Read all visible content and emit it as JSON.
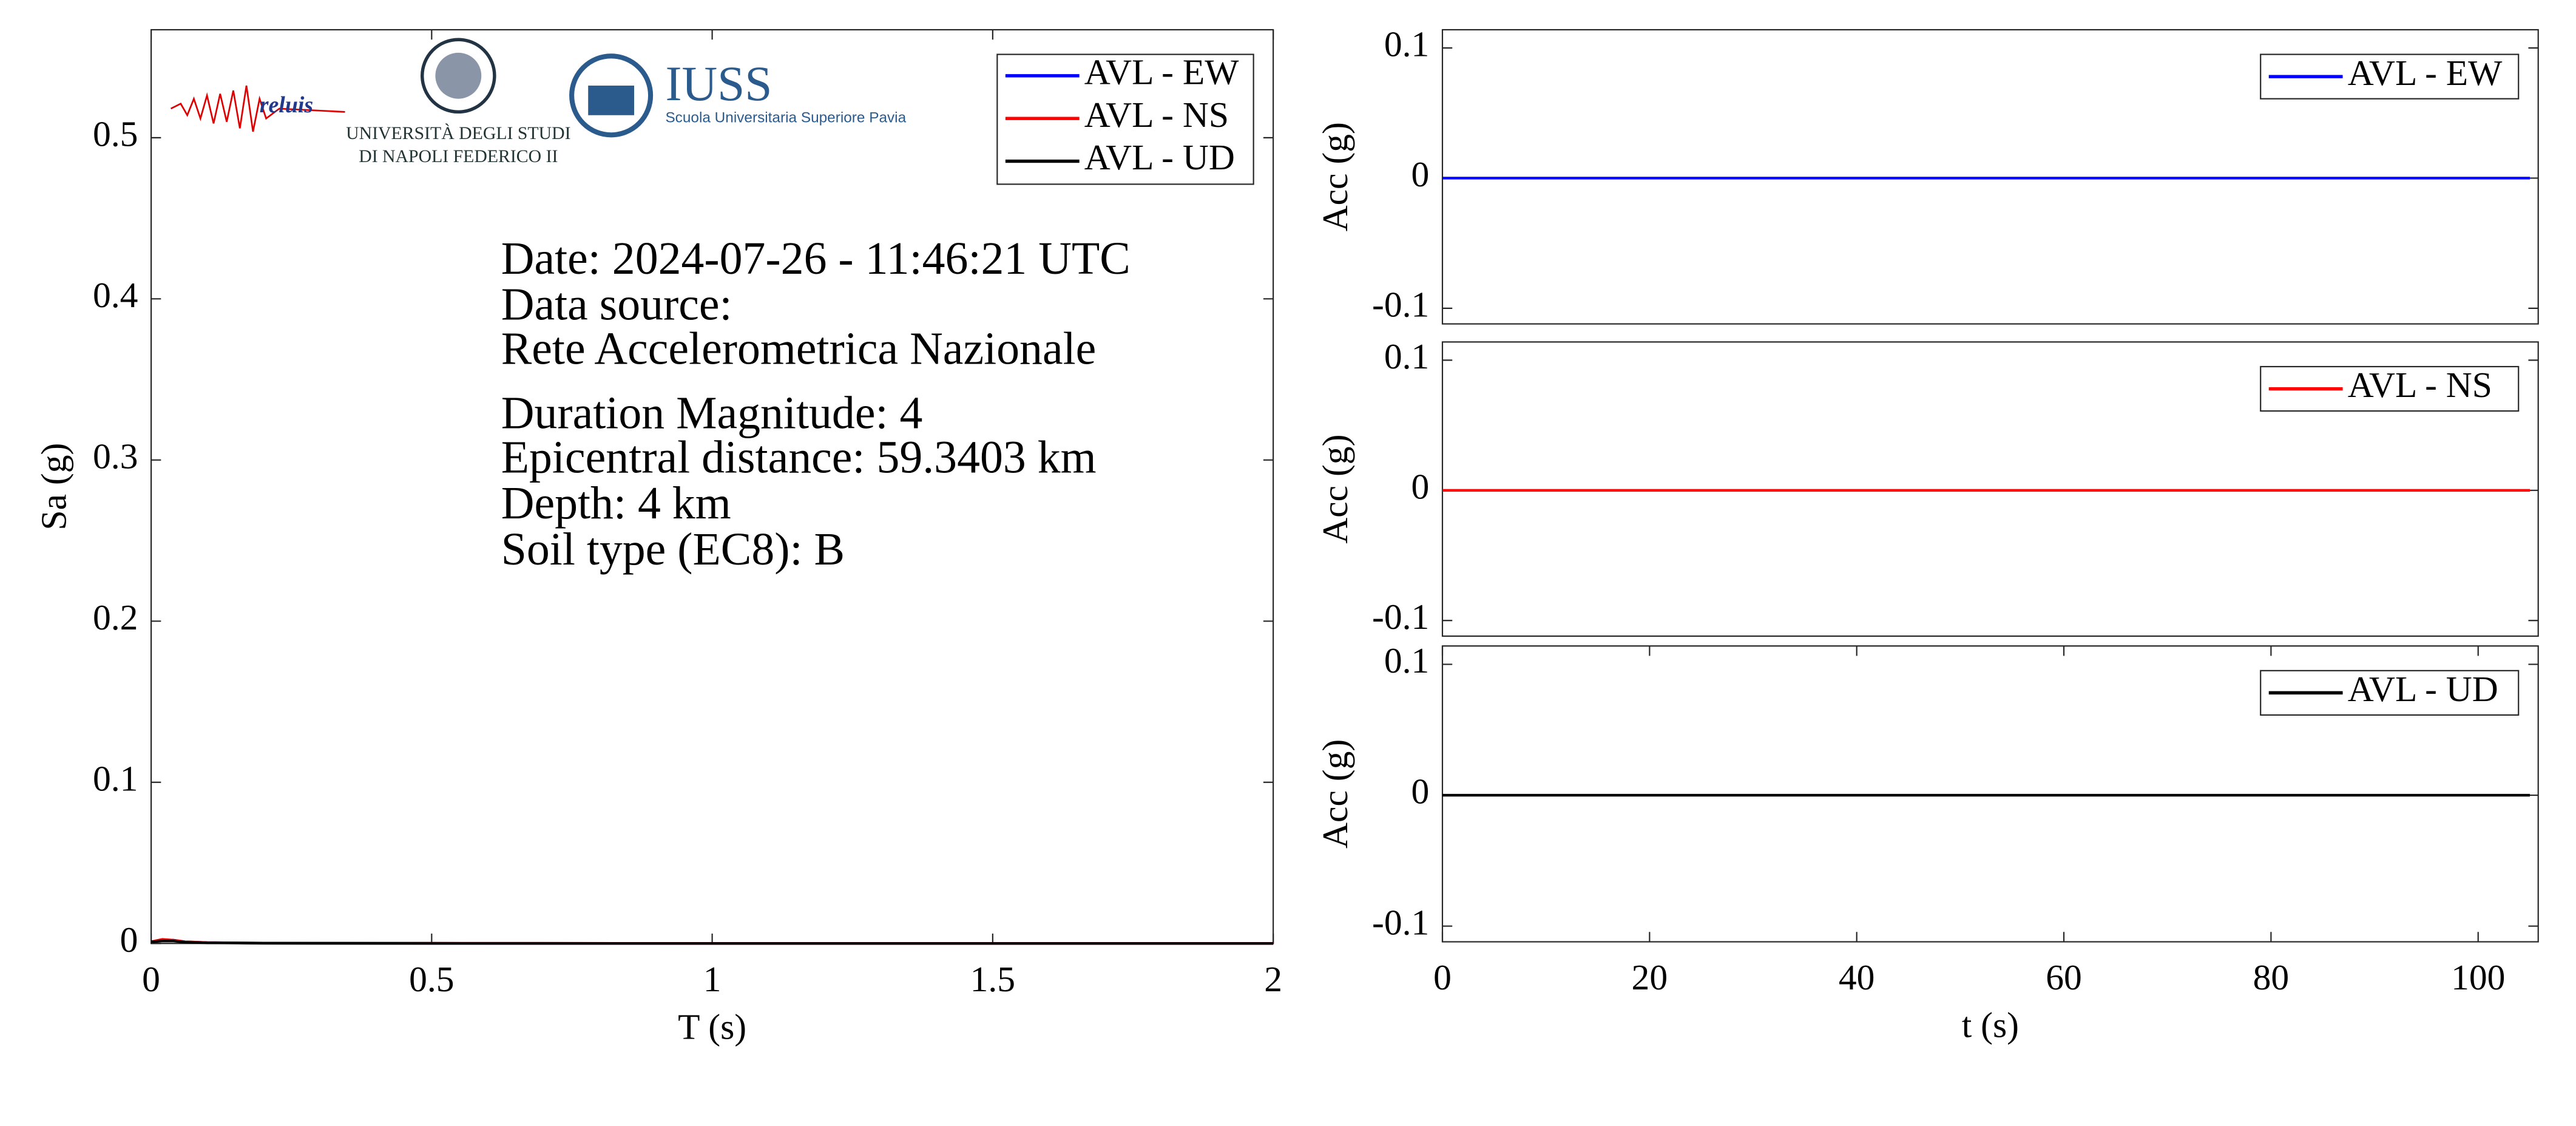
{
  "logos": [
    "reluis",
    "UNIVERSITÀ DEGLI STUDI",
    "DI NAPOLI FEDERICO II",
    "IUSS",
    "Scuola Universitaria Superiore Pavia"
  ],
  "chart_data": [
    {
      "type": "line",
      "xlabel": "T (s)",
      "ylabel": "Sa (g)",
      "x": [
        0,
        0.02,
        0.04,
        0.06,
        0.1,
        0.2,
        0.5,
        1,
        1.5,
        2
      ],
      "series": [
        {
          "name": "AVL - EW",
          "color": "#0000ff",
          "values": [
            0.001,
            0.002,
            0.002,
            0.001,
            0.0005,
            0.0002,
            0.0001,
            0,
            0,
            0
          ]
        },
        {
          "name": "AVL - NS",
          "color": "#ff0000",
          "values": [
            0.001,
            0.0025,
            0.002,
            0.001,
            0.0005,
            0.0002,
            0.0001,
            0,
            0,
            0
          ]
        },
        {
          "name": "AVL - UD",
          "color": "#000000",
          "values": [
            0.001,
            0.0015,
            0.0015,
            0.0008,
            0.0004,
            0.0001,
            0,
            0,
            0,
            0
          ]
        }
      ],
      "xlim": [
        0,
        2
      ],
      "xticks": [
        0,
        0.5,
        1,
        1.5,
        2
      ],
      "ylim": [
        0,
        0.567
      ],
      "yticks": [
        0,
        0.1,
        0.2,
        0.3,
        0.4,
        0.5
      ],
      "legend": "upper right",
      "annotations": [
        "Date: 2024-07-26 - 11:46:21 UTC",
        "Data source:",
        "Rete Accelerometrica Nazionale",
        "Duration Magnitude: 4",
        "Epicentral distance: 59.3403 km",
        "Depth: 4 km",
        "Soil type (EC8): B"
      ]
    },
    {
      "type": "line",
      "ylabel": "Acc (g)",
      "x": [
        0,
        105
      ],
      "series": [
        {
          "name": "AVL - EW",
          "color": "#0000ff",
          "values": [
            0,
            0
          ]
        }
      ],
      "xlim": [
        0,
        105.8
      ],
      "ylim": [
        -0.112,
        0.114
      ],
      "yticks": [
        -0.1,
        0,
        0.1
      ],
      "legend": "upper right"
    },
    {
      "type": "line",
      "ylabel": "Acc (g)",
      "x": [
        0,
        105
      ],
      "series": [
        {
          "name": "AVL - NS",
          "color": "#ff0000",
          "values": [
            0,
            0
          ]
        }
      ],
      "xlim": [
        0,
        105.8
      ],
      "ylim": [
        -0.112,
        0.114
      ],
      "yticks": [
        -0.1,
        0,
        0.1
      ],
      "legend": "upper right"
    },
    {
      "type": "line",
      "xlabel": "t (s)",
      "ylabel": "Acc (g)",
      "x": [
        0,
        105
      ],
      "series": [
        {
          "name": "AVL - UD",
          "color": "#000000",
          "values": [
            0,
            0
          ]
        }
      ],
      "xlim": [
        0,
        105.8
      ],
      "xticks": [
        0,
        20,
        40,
        60,
        80,
        100
      ],
      "ylim": [
        -0.112,
        0.114
      ],
      "yticks": [
        -0.1,
        0,
        0.1
      ],
      "legend": "upper right"
    }
  ]
}
